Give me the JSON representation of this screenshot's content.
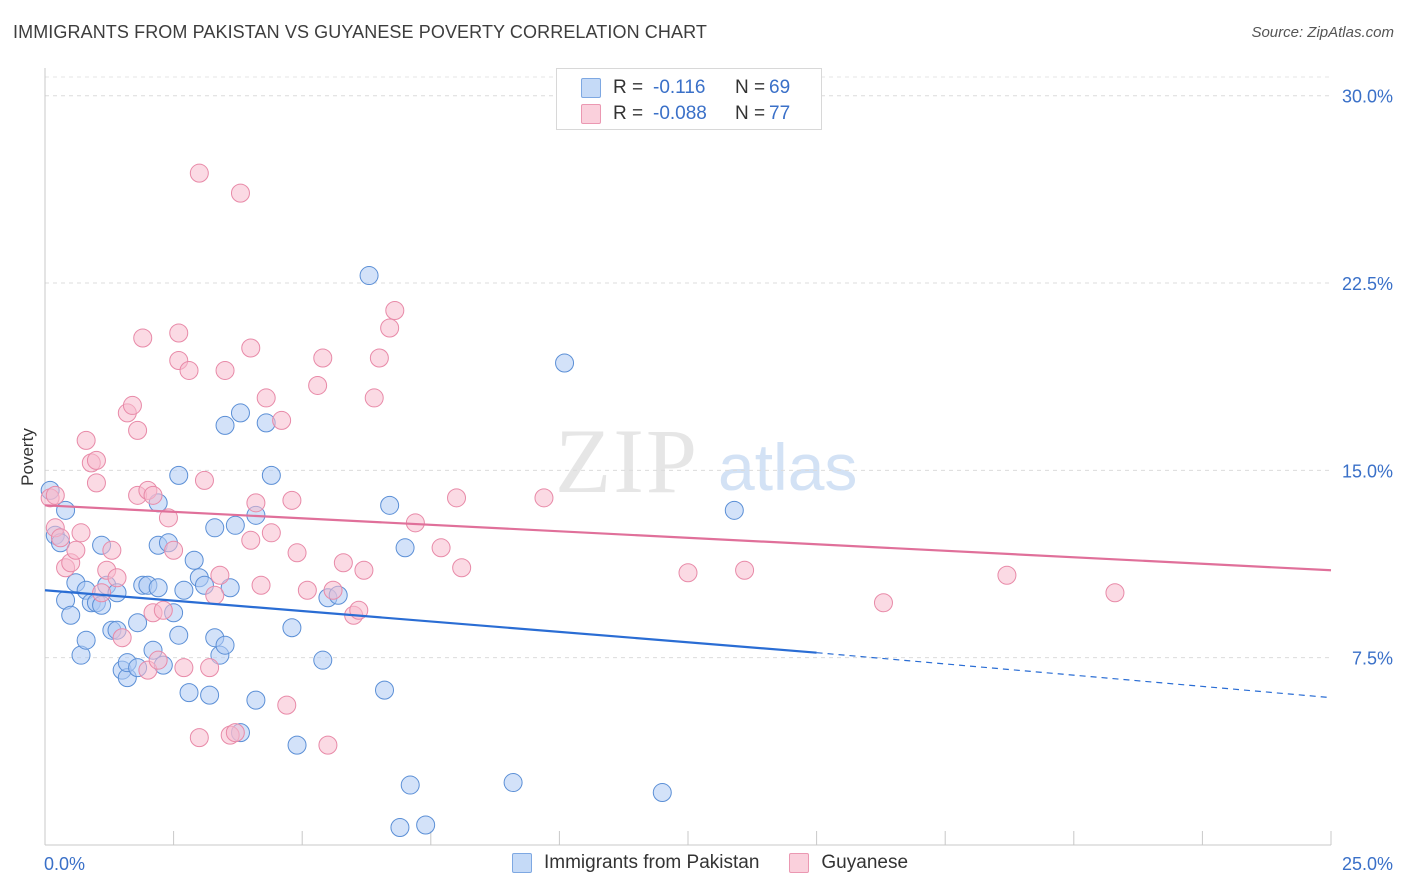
{
  "header": {
    "title": "IMMIGRANTS FROM PAKISTAN VS GUYANESE POVERTY CORRELATION CHART",
    "source": "Source: ZipAtlas.com"
  },
  "watermark": {
    "zip": "ZIP",
    "atlas": "atlas"
  },
  "legend": {
    "rows": [
      {
        "r_label": "R =",
        "r_value": "-0.116",
        "n_label": "N =",
        "n_value": "69",
        "color": "#aecbf4"
      },
      {
        "r_label": "R =",
        "r_value": "-0.088",
        "n_label": "N =",
        "n_value": "77",
        "color": "#f7bccd"
      }
    ]
  },
  "chart_data": {
    "type": "scatter",
    "title": "IMMIGRANTS FROM PAKISTAN VS GUYANESE POVERTY CORRELATION CHART",
    "xlabel": "",
    "ylabel": "Poverty",
    "xlim": [
      0,
      25
    ],
    "ylim": [
      0,
      30.75
    ],
    "x_tick_labels": [
      "0.0%",
      "25.0%"
    ],
    "y_ticks": [
      7.5,
      15.0,
      22.5,
      30.0
    ],
    "y_tick_labels": [
      "7.5%",
      "15.0%",
      "22.5%",
      "30.0%"
    ],
    "grid": true,
    "legend_position": "top-center",
    "series": [
      {
        "name": "Immigrants from Pakistan",
        "color": "#aecbf4",
        "stroke": "#5b8fd6",
        "trend": {
          "x": [
            0,
            15
          ],
          "y": [
            10.2,
            7.7
          ],
          "dashed_to": [
            25,
            5.9
          ],
          "color": "#2a6dd4"
        },
        "points": [
          [
            0.1,
            14.2
          ],
          [
            0.2,
            12.4
          ],
          [
            0.3,
            12.1
          ],
          [
            0.4,
            13.4
          ],
          [
            0.4,
            9.8
          ],
          [
            0.5,
            9.2
          ],
          [
            0.6,
            10.5
          ],
          [
            0.7,
            7.6
          ],
          [
            0.8,
            10.2
          ],
          [
            0.8,
            8.2
          ],
          [
            0.9,
            9.7
          ],
          [
            1.0,
            9.7
          ],
          [
            1.1,
            12.0
          ],
          [
            1.2,
            10.4
          ],
          [
            1.3,
            8.6
          ],
          [
            1.4,
            8.6
          ],
          [
            1.4,
            10.1
          ],
          [
            1.5,
            7.0
          ],
          [
            1.6,
            6.7
          ],
          [
            1.6,
            7.3
          ],
          [
            1.8,
            8.9
          ],
          [
            1.8,
            7.1
          ],
          [
            1.9,
            10.4
          ],
          [
            2.0,
            10.4
          ],
          [
            2.1,
            7.8
          ],
          [
            2.2,
            12.0
          ],
          [
            2.2,
            13.7
          ],
          [
            2.3,
            7.2
          ],
          [
            2.4,
            12.1
          ],
          [
            2.5,
            9.3
          ],
          [
            2.6,
            8.4
          ],
          [
            2.6,
            14.8
          ],
          [
            2.7,
            10.2
          ],
          [
            2.8,
            6.1
          ],
          [
            2.9,
            11.4
          ],
          [
            3.0,
            10.7
          ],
          [
            3.1,
            10.4
          ],
          [
            3.2,
            6.0
          ],
          [
            3.3,
            8.3
          ],
          [
            3.4,
            7.6
          ],
          [
            3.5,
            8.0
          ],
          [
            3.5,
            16.8
          ],
          [
            3.6,
            10.3
          ],
          [
            3.7,
            12.8
          ],
          [
            3.8,
            4.5
          ],
          [
            3.8,
            17.3
          ],
          [
            4.1,
            13.2
          ],
          [
            4.1,
            5.8
          ],
          [
            4.3,
            16.9
          ],
          [
            4.4,
            14.8
          ],
          [
            4.8,
            8.7
          ],
          [
            4.9,
            4.0
          ],
          [
            5.4,
            7.4
          ],
          [
            5.5,
            9.9
          ],
          [
            5.7,
            10.0
          ],
          [
            6.3,
            22.8
          ],
          [
            6.6,
            6.2
          ],
          [
            6.7,
            13.6
          ],
          [
            7.0,
            11.9
          ],
          [
            7.1,
            2.4
          ],
          [
            6.9,
            0.7
          ],
          [
            7.4,
            0.8
          ],
          [
            9.1,
            2.5
          ],
          [
            10.1,
            19.3
          ],
          [
            12.0,
            2.1
          ],
          [
            13.4,
            13.4
          ],
          [
            3.3,
            12.7
          ],
          [
            2.2,
            10.3
          ],
          [
            1.1,
            9.6
          ]
        ]
      },
      {
        "name": "Guyanese",
        "color": "#f7bccd",
        "stroke": "#e88aa8",
        "trend": {
          "x": [
            0,
            25
          ],
          "y": [
            13.6,
            11.0
          ],
          "color": "#e0709a"
        },
        "points": [
          [
            0.1,
            13.9
          ],
          [
            0.2,
            12.7
          ],
          [
            0.3,
            12.3
          ],
          [
            0.4,
            11.1
          ],
          [
            0.5,
            11.3
          ],
          [
            0.6,
            11.8
          ],
          [
            0.7,
            12.5
          ],
          [
            0.8,
            16.2
          ],
          [
            0.9,
            15.3
          ],
          [
            1.0,
            14.5
          ],
          [
            1.0,
            15.4
          ],
          [
            1.1,
            10.1
          ],
          [
            1.2,
            11.0
          ],
          [
            1.3,
            11.8
          ],
          [
            1.4,
            10.7
          ],
          [
            1.5,
            8.3
          ],
          [
            1.6,
            17.3
          ],
          [
            1.7,
            17.6
          ],
          [
            1.8,
            16.6
          ],
          [
            1.8,
            14.0
          ],
          [
            1.9,
            20.3
          ],
          [
            2.0,
            14.2
          ],
          [
            2.0,
            7.0
          ],
          [
            2.1,
            14.0
          ],
          [
            2.1,
            9.3
          ],
          [
            2.2,
            7.4
          ],
          [
            2.3,
            9.4
          ],
          [
            2.4,
            13.1
          ],
          [
            2.5,
            11.8
          ],
          [
            2.6,
            19.4
          ],
          [
            2.6,
            20.5
          ],
          [
            2.7,
            7.1
          ],
          [
            2.8,
            19.0
          ],
          [
            3.0,
            26.9
          ],
          [
            3.0,
            4.3
          ],
          [
            3.1,
            14.6
          ],
          [
            3.2,
            7.1
          ],
          [
            3.3,
            10.0
          ],
          [
            3.4,
            10.8
          ],
          [
            3.5,
            19.0
          ],
          [
            3.6,
            4.4
          ],
          [
            3.7,
            4.5
          ],
          [
            3.8,
            26.1
          ],
          [
            4.0,
            12.2
          ],
          [
            4.0,
            19.9
          ],
          [
            4.1,
            13.7
          ],
          [
            4.2,
            10.4
          ],
          [
            4.3,
            17.9
          ],
          [
            4.4,
            12.5
          ],
          [
            4.6,
            17.0
          ],
          [
            4.7,
            5.6
          ],
          [
            4.8,
            13.8
          ],
          [
            4.9,
            11.7
          ],
          [
            5.1,
            10.2
          ],
          [
            5.3,
            18.4
          ],
          [
            5.4,
            19.5
          ],
          [
            5.5,
            4.0
          ],
          [
            5.6,
            10.2
          ],
          [
            5.8,
            11.3
          ],
          [
            6.0,
            9.2
          ],
          [
            6.1,
            9.4
          ],
          [
            6.2,
            11.0
          ],
          [
            6.4,
            17.9
          ],
          [
            6.5,
            19.5
          ],
          [
            6.7,
            20.7
          ],
          [
            6.8,
            21.4
          ],
          [
            7.2,
            12.9
          ],
          [
            7.7,
            11.9
          ],
          [
            8.0,
            13.9
          ],
          [
            8.1,
            11.1
          ],
          [
            9.7,
            13.9
          ],
          [
            12.5,
            10.9
          ],
          [
            13.6,
            11.0
          ],
          [
            16.3,
            9.7
          ],
          [
            18.7,
            10.8
          ],
          [
            20.8,
            10.1
          ],
          [
            0.2,
            14.0
          ]
        ]
      }
    ]
  },
  "bottom_legend": {
    "items": [
      "Immigrants from Pakistan",
      "Guyanese"
    ]
  }
}
